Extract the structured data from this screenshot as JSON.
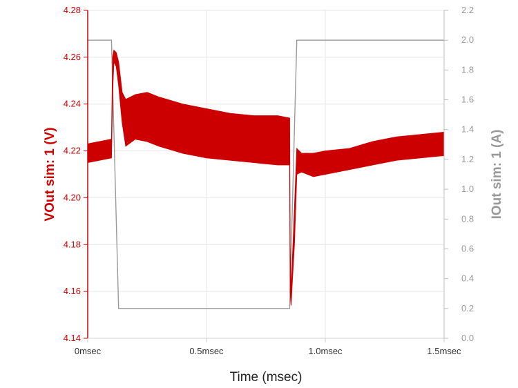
{
  "chart_data": {
    "type": "line",
    "title": "",
    "xlabel": "Time (msec)",
    "ylabel_left": "VOut sim: 1 (V)",
    "ylabel_right": "IOut sim: 1 (A)",
    "xlim": [
      0,
      1.5
    ],
    "ylim_left": [
      4.14,
      4.28
    ],
    "ylim_right": [
      0,
      2.2
    ],
    "grid": true,
    "x_ticks": [
      {
        "value": 0,
        "label": "0msec"
      },
      {
        "value": 0.5,
        "label": "0.5msec"
      },
      {
        "value": 1.0,
        "label": "1.0msec"
      },
      {
        "value": 1.5,
        "label": "1.5msec"
      }
    ],
    "y_left_ticks": [
      {
        "value": 4.14,
        "label": "4.14"
      },
      {
        "value": 4.16,
        "label": "4.16"
      },
      {
        "value": 4.18,
        "label": "4.18"
      },
      {
        "value": 4.2,
        "label": "4.20"
      },
      {
        "value": 4.22,
        "label": "4.22"
      },
      {
        "value": 4.24,
        "label": "4.24"
      },
      {
        "value": 4.26,
        "label": "4.26"
      },
      {
        "value": 4.28,
        "label": "4.28"
      }
    ],
    "y_right_ticks": [
      {
        "value": 0.0,
        "label": "0.0"
      },
      {
        "value": 0.2,
        "label": "0.2"
      },
      {
        "value": 0.4,
        "label": "0.4"
      },
      {
        "value": 0.6,
        "label": "0.6"
      },
      {
        "value": 0.8,
        "label": "0.8"
      },
      {
        "value": 1.0,
        "label": "1.0"
      },
      {
        "value": 1.2,
        "label": "1.2"
      },
      {
        "value": 1.4,
        "label": "1.4"
      },
      {
        "value": 1.6,
        "label": "1.6"
      },
      {
        "value": 1.8,
        "label": "1.8"
      },
      {
        "value": 2.0,
        "label": "2.0"
      },
      {
        "value": 2.2,
        "label": "2.2"
      }
    ],
    "series": [
      {
        "axis": "left",
        "color": "#cc0000",
        "style": "ripple-band",
        "x": [
          0.0,
          0.05,
          0.1,
          0.105,
          0.11,
          0.12,
          0.13,
          0.145,
          0.16,
          0.2,
          0.25,
          0.3,
          0.4,
          0.5,
          0.6,
          0.7,
          0.8,
          0.85,
          0.852,
          0.856,
          0.86,
          0.87,
          0.88,
          0.9,
          0.95,
          1.0,
          1.1,
          1.2,
          1.3,
          1.4,
          1.5
        ],
        "y_upper": [
          4.223,
          4.224,
          4.225,
          4.26,
          4.263,
          4.262,
          4.258,
          4.245,
          4.242,
          4.244,
          4.245,
          4.243,
          4.24,
          4.238,
          4.236,
          4.235,
          4.235,
          4.234,
          4.18,
          4.16,
          4.17,
          4.195,
          4.221,
          4.219,
          4.219,
          4.22,
          4.221,
          4.224,
          4.226,
          4.227,
          4.228
        ],
        "y_lower": [
          4.215,
          4.216,
          4.217,
          4.245,
          4.258,
          4.256,
          4.248,
          4.232,
          4.222,
          4.225,
          4.224,
          4.222,
          4.219,
          4.217,
          4.216,
          4.215,
          4.214,
          4.214,
          4.16,
          4.154,
          4.162,
          4.18,
          4.21,
          4.211,
          4.209,
          4.21,
          4.212,
          4.214,
          4.216,
          4.217,
          4.218
        ]
      },
      {
        "axis": "right",
        "color": "#999999",
        "style": "line",
        "x": [
          0.0,
          0.1,
          0.13,
          0.85,
          0.88,
          1.5
        ],
        "y": [
          2.0,
          2.0,
          0.2,
          0.2,
          2.0,
          2.0
        ]
      }
    ]
  }
}
